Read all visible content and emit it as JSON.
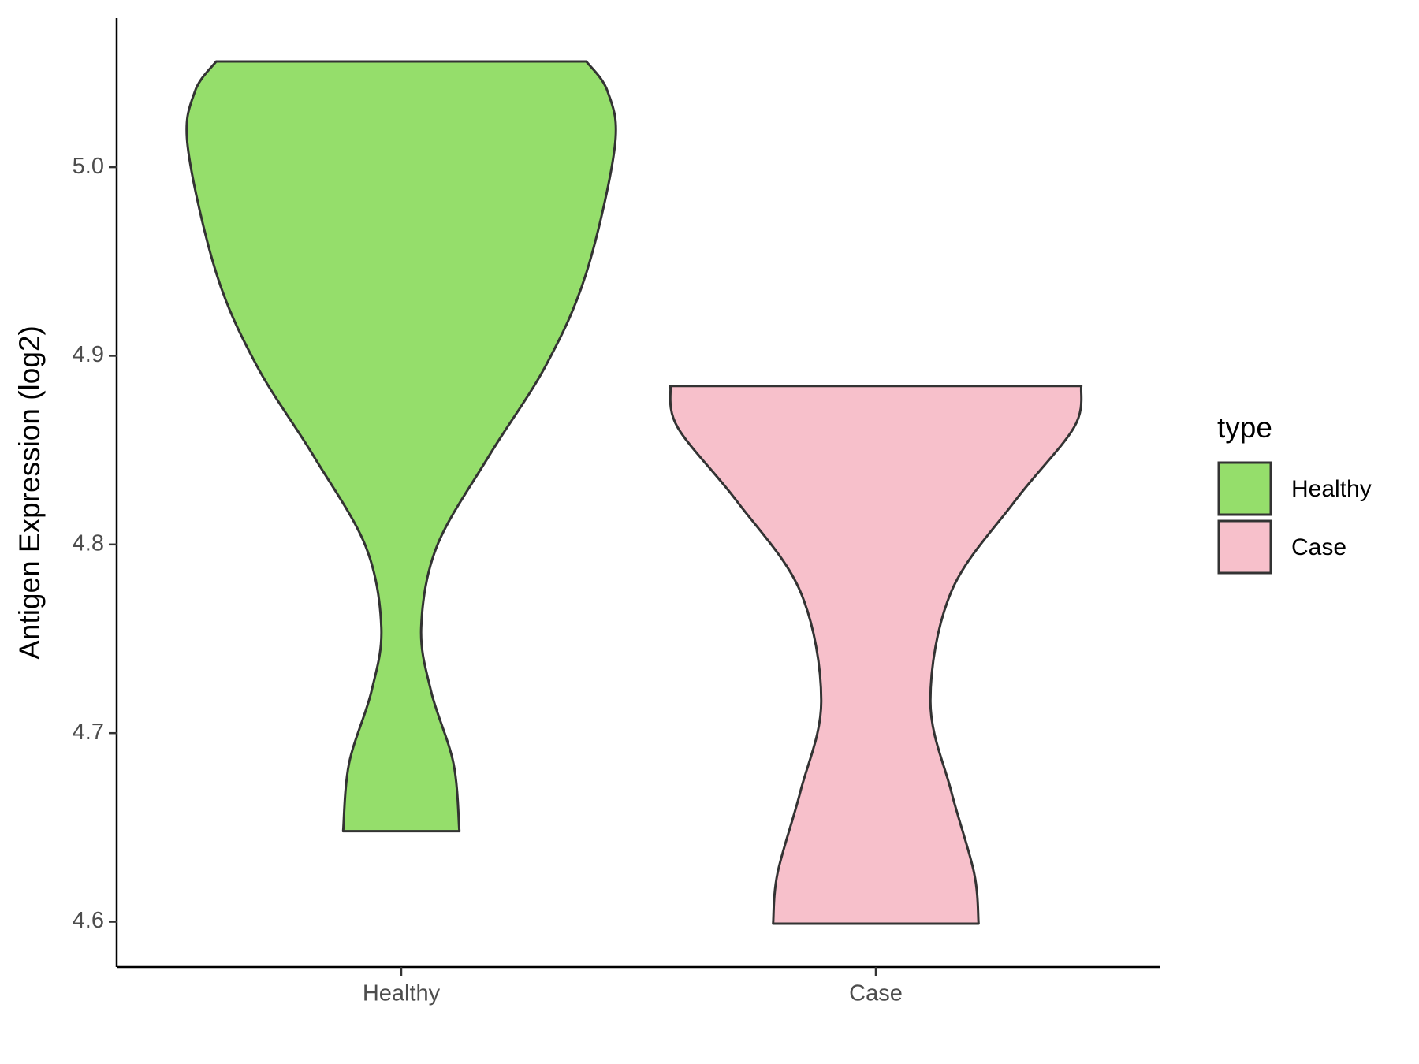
{
  "chart_data": {
    "type": "violin",
    "y_label": "Antigen Expression (log2)",
    "categories": [
      "Healthy",
      "Case"
    ],
    "legend_title": "type",
    "series": [
      {
        "name": "Healthy",
        "color": "#95DE6B",
        "profile": {
          "y": [
            5.056,
            5.04,
            5.011,
            4.944,
            4.895,
            4.847,
            4.799,
            4.756,
            4.722,
            4.684,
            4.648
          ],
          "width": [
            0.78,
            0.87,
            0.9,
            0.78,
            0.61,
            0.37,
            0.15,
            0.084,
            0.126,
            0.22,
            0.245
          ]
        }
      },
      {
        "name": "Case",
        "color": "#F7C0CB",
        "profile": {
          "y": [
            4.884,
            4.862,
            4.823,
            4.775,
            4.717,
            4.669,
            4.626,
            4.599
          ],
          "width": [
            0.866,
            0.835,
            0.586,
            0.318,
            0.23,
            0.318,
            0.414,
            0.433
          ]
        }
      }
    ],
    "ylim": [
      4.576,
      5.079
    ],
    "yticks": [
      4.6,
      4.7,
      4.8,
      4.9,
      {
        "value": 5,
        "label": "5.0"
      }
    ],
    "outline_color": "#333333"
  }
}
